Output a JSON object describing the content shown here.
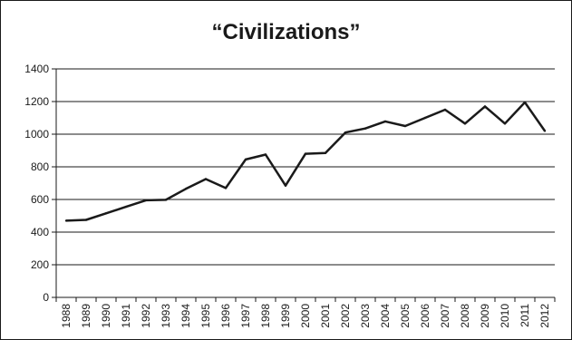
{
  "chart_data": {
    "type": "line",
    "title": "“Civilizations”",
    "xlabel": "",
    "ylabel": "",
    "ylim": [
      0,
      1400
    ],
    "yticks": [
      0,
      200,
      400,
      600,
      800,
      1000,
      1200,
      1400
    ],
    "grid": true,
    "legend": "none",
    "x": [
      "1988",
      "1989",
      "1990",
      "1991",
      "1992",
      "1993",
      "1994",
      "1995",
      "1996",
      "1997",
      "1998",
      "1999",
      "2000",
      "2001",
      "2002",
      "2003",
      "2004",
      "2005",
      "2006",
      "2007",
      "2008",
      "2009",
      "2010",
      "2011",
      "2012"
    ],
    "series": [
      {
        "values": [
          470,
          475,
          515,
          555,
          595,
          598,
          665,
          725,
          670,
          845,
          875,
          685,
          880,
          885,
          1010,
          1035,
          1078,
          1050,
          1100,
          1150,
          1065,
          1170,
          1065,
          1195,
          1020
        ]
      }
    ],
    "colors": {
      "line": "#1a1a1a",
      "grid": "#1a1a1a",
      "text": "#1a1a1a"
    }
  }
}
